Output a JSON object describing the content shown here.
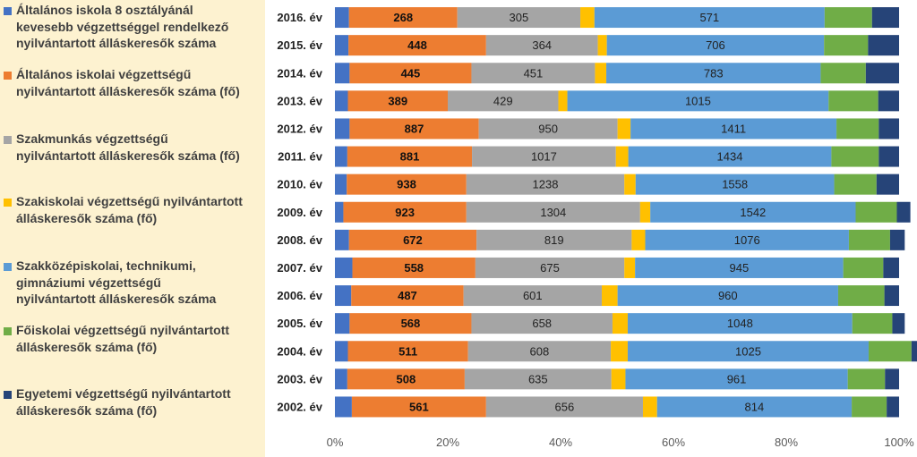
{
  "chart_data": {
    "type": "bar",
    "orientation": "horizontal",
    "stacked": "percent",
    "categories": [
      "2016. év",
      "2015. év",
      "2014. év",
      "2013. év",
      "2012. év",
      "2011. év",
      "2010. év",
      "2009. év",
      "2008. év",
      "2007. év",
      "2006. év",
      "2005. év",
      "2004. év",
      "2003. év",
      "2002. év"
    ],
    "xticks": [
      "0%",
      "20%",
      "40%",
      "60%",
      "80%",
      "100%"
    ],
    "xlim": [
      0,
      100
    ],
    "series": [
      {
        "name": "Általános iskola 8 osztályánál kevesebb végzettséggel rendelkező nyilvántartott álláskeresők száma",
        "color": "#4472c4",
        "values": [
          2.5,
          2.4,
          2.6,
          2.3,
          2.6,
          2.2,
          2.1,
          1.5,
          2.5,
          3.1,
          2.9,
          2.6,
          2.3,
          2.2,
          3.0
        ]
      },
      {
        "name": "Általános iskolai végzettségű nyilvántartott álláskeresők száma (fő)",
        "color": "#ed7d31",
        "labels": [
          268,
          448,
          445,
          389,
          887,
          881,
          938,
          923,
          672,
          558,
          487,
          568,
          511,
          508,
          561
        ],
        "values": [
          19.2,
          24.4,
          21.6,
          17.7,
          22.9,
          22.1,
          21.2,
          21.8,
          22.6,
          21.8,
          19.9,
          21.6,
          21.3,
          20.8,
          23.8
        ]
      },
      {
        "name": "Szakmunkás végzettségű nyilvántartott álláskeresők száma (fő)",
        "color": "#a5a5a5",
        "labels": [
          305,
          364,
          451,
          429,
          950,
          1017,
          1238,
          1304,
          819,
          675,
          601,
          658,
          608,
          635,
          656
        ],
        "values": [
          21.8,
          19.8,
          21.9,
          19.6,
          24.6,
          25.5,
          28.0,
          30.8,
          27.5,
          26.4,
          24.5,
          25.0,
          25.3,
          26.0,
          27.8
        ]
      },
      {
        "name": "Szakiskolai végzettségű nyilvántartott álláskeresők száma (fő)",
        "color": "#ffc000",
        "values": [
          2.5,
          1.6,
          2.0,
          1.6,
          2.3,
          2.2,
          2.0,
          1.8,
          2.4,
          1.9,
          2.8,
          2.7,
          3.0,
          2.5,
          2.5
        ]
      },
      {
        "name": "Szakközépiskolai, technikumi, gimnáziumi végzettségű nyilvántartott álláskeresők száma",
        "color": "#5b9bd5",
        "labels": [
          571,
          706,
          783,
          1015,
          1411,
          1434,
          1558,
          1542,
          1076,
          945,
          960,
          1048,
          1025,
          961,
          814
        ],
        "values": [
          40.8,
          38.5,
          38.0,
          46.3,
          36.5,
          36.0,
          35.2,
          36.4,
          36.1,
          36.9,
          39.1,
          39.8,
          42.7,
          39.4,
          34.5
        ]
      },
      {
        "name": "Főiskolai végzettségű nyilvántartott álláskeresők száma (fő)",
        "color": "#70ad47",
        "values": [
          8.4,
          7.8,
          8.0,
          8.8,
          7.5,
          8.4,
          7.5,
          7.3,
          7.3,
          7.1,
          8.2,
          7.1,
          7.6,
          6.6,
          6.2
        ]
      },
      {
        "name": "Egyetemi végzettségű nyilvántartott álláskeresők száma (fő)",
        "color": "#264478",
        "values": [
          4.8,
          5.5,
          5.9,
          3.7,
          3.6,
          3.6,
          4.0,
          2.4,
          2.6,
          2.8,
          2.6,
          2.2,
          2.8,
          2.5,
          2.2
        ]
      }
    ]
  },
  "legend": {
    "items": [
      {
        "label": "Általános iskola 8 osztályánál\nkevesebb végzettséggel rendelkező\nnyilvántartott álláskeresők száma",
        "color": "#4472c4"
      },
      {
        "label": "Általános iskolai végzettségű\nnyilvántartott álláskeresők száma (fő)",
        "color": "#ed7d31"
      },
      {
        "label": "Szakmunkás végzettségű\nnyilvántartott álláskeresők száma (fő)",
        "color": "#a5a5a5"
      },
      {
        "label": "Szakiskolai végzettségű nyilvántartott\nálláskeresők száma (fő)",
        "color": "#ffc000"
      },
      {
        "label": "Szakközépiskolai, technikumi,\ngimnáziumi végzettségű\nnyilvántartott álláskeresők száma",
        "color": "#5b9bd5"
      },
      {
        "label": "Főiskolai végzettségű nyilvántartott\nálláskeresők száma (fő)",
        "color": "#70ad47"
      },
      {
        "label": "Egyetemi végzettségű nyilvántartott\nálláskeresők száma (fő)",
        "color": "#264478"
      }
    ]
  }
}
